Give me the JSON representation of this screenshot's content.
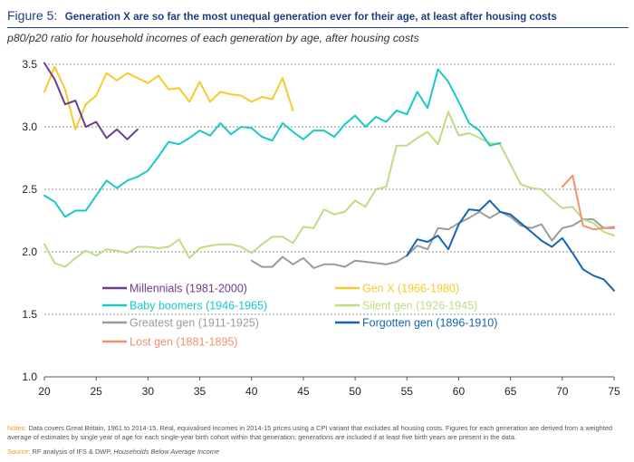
{
  "header": {
    "figure_label": "Figure 5:",
    "title": "Generation X are so far the most unequal generation ever for their age, at least after housing costs",
    "subtitle": "p80/p20 ratio for household incomes of each generation by age, after housing costs"
  },
  "footer": {
    "notes_label": "Notes:",
    "notes_text": "Data covers Great Britain, 1961 to 2014-15. Real, equivalised incomes in 2014-15 prices using a CPI variant that excludes all housing costs. Figures for each generation are derived from a weighted average of estimates by single year of age for each single-year birth cohort within that generation; generations are included if at least five birth years are present in the data.",
    "source_label": "Source:",
    "source_text": "RF analysis of IFS & DWP,",
    "source_title": "Households Below Average Income"
  },
  "chart_data": {
    "type": "line",
    "title": "",
    "xlabel": "",
    "ylabel": "",
    "xlim": [
      20,
      75
    ],
    "ylim": [
      1.0,
      3.5
    ],
    "x_ticks": [
      20,
      25,
      30,
      35,
      40,
      45,
      50,
      55,
      60,
      65,
      70,
      75
    ],
    "y_ticks": [
      1.0,
      1.5,
      2.0,
      2.5,
      3.0,
      3.5
    ],
    "y_tick_labels": [
      "1.0",
      "1.5",
      "2.0",
      "2.5",
      "3.0",
      "3.5"
    ],
    "grid": "horizontal dashed",
    "legend": "inside, lower-left, two columns",
    "series": [
      {
        "name": "Millennials (1981-2000)",
        "color": "#6a3d8e",
        "x": [
          20,
          21,
          22,
          23,
          24,
          25,
          26,
          27,
          28,
          29
        ],
        "y": [
          3.51,
          3.38,
          3.18,
          3.21,
          3.0,
          3.04,
          2.91,
          2.98,
          2.9,
          2.98
        ]
      },
      {
        "name": "Gen X (1966-1980)",
        "color": "#f5cc2c",
        "x": [
          20,
          21,
          22,
          23,
          24,
          25,
          26,
          27,
          28,
          29,
          30,
          31,
          32,
          33,
          34,
          35,
          36,
          37,
          38,
          39,
          40,
          41,
          42,
          43,
          44
        ],
        "y": [
          3.28,
          3.48,
          3.3,
          2.98,
          3.18,
          3.25,
          3.43,
          3.37,
          3.43,
          3.39,
          3.35,
          3.41,
          3.3,
          3.31,
          3.2,
          3.36,
          3.2,
          3.28,
          3.26,
          3.25,
          3.2,
          3.24,
          3.22,
          3.39,
          3.13
        ]
      },
      {
        "name": "Baby boomers (1946-1965)",
        "color": "#1ac8c8",
        "x": [
          20,
          21,
          22,
          23,
          24,
          25,
          26,
          27,
          28,
          29,
          30,
          31,
          32,
          33,
          34,
          35,
          36,
          37,
          38,
          39,
          40,
          41,
          42,
          43,
          44,
          45,
          46,
          47,
          48,
          49,
          50,
          51,
          52,
          53,
          54,
          55,
          56,
          57,
          58,
          59,
          60,
          61,
          62,
          63,
          64
        ],
        "y": [
          2.45,
          2.4,
          2.28,
          2.33,
          2.33,
          2.45,
          2.57,
          2.51,
          2.57,
          2.6,
          2.65,
          2.76,
          2.88,
          2.86,
          2.91,
          2.97,
          2.93,
          3.03,
          2.94,
          3.0,
          2.99,
          2.92,
          2.89,
          3.03,
          2.96,
          2.9,
          2.97,
          2.97,
          2.92,
          3.02,
          3.09,
          3.0,
          3.08,
          3.04,
          3.13,
          3.1,
          3.28,
          3.15,
          3.46,
          3.36,
          3.2,
          3.03,
          2.97,
          2.85,
          2.87
        ]
      },
      {
        "name": "Silent gen (1926-1945)",
        "color": "#bcdd83",
        "x": [
          20,
          21,
          22,
          23,
          24,
          25,
          26,
          27,
          28,
          29,
          30,
          31,
          32,
          33,
          34,
          35,
          36,
          37,
          38,
          39,
          40,
          41,
          42,
          43,
          44,
          45,
          46,
          47,
          48,
          49,
          50,
          51,
          52,
          53,
          54,
          55,
          56,
          57,
          58,
          59,
          60,
          61,
          62,
          63,
          64,
          65,
          66,
          67,
          68,
          69,
          70,
          71,
          72,
          73,
          74,
          75
        ],
        "y": [
          2.06,
          1.91,
          1.88,
          1.95,
          2.01,
          1.97,
          2.02,
          2.01,
          1.99,
          2.04,
          2.04,
          2.03,
          2.04,
          2.1,
          1.95,
          2.03,
          2.05,
          2.06,
          2.06,
          2.04,
          1.99,
          2.06,
          2.12,
          2.12,
          2.07,
          2.2,
          2.19,
          2.34,
          2.3,
          2.32,
          2.41,
          2.36,
          2.5,
          2.52,
          2.85,
          2.85,
          2.91,
          2.96,
          2.86,
          3.12,
          2.93,
          2.95,
          2.91,
          2.87,
          2.86,
          2.7,
          2.54,
          2.51,
          2.5,
          2.42,
          2.35,
          2.36,
          2.26,
          2.23,
          2.16,
          2.13
        ]
      },
      {
        "name": "Greatest gen (1911-1925)",
        "color": "#9b9b9b",
        "x": [
          40,
          41,
          42,
          43,
          44,
          45,
          46,
          47,
          48,
          49,
          50,
          51,
          52,
          53,
          54,
          55,
          56,
          57,
          58,
          59,
          60,
          61,
          62,
          63,
          64,
          65,
          66,
          67,
          68,
          69,
          70,
          71,
          72,
          73,
          74,
          75
        ],
        "y": [
          1.93,
          1.88,
          1.88,
          1.96,
          1.9,
          1.95,
          1.87,
          1.9,
          1.9,
          1.88,
          1.93,
          1.92,
          1.91,
          1.9,
          1.92,
          1.97,
          2.05,
          2.02,
          2.19,
          2.18,
          2.23,
          2.27,
          2.32,
          2.27,
          2.32,
          2.28,
          2.21,
          2.19,
          2.22,
          2.09,
          2.19,
          2.21,
          2.26,
          2.26,
          2.19,
          2.19
        ]
      },
      {
        "name": "Forgotten gen (1896-1910)",
        "color": "#1565b0",
        "x": [
          55,
          56,
          57,
          58,
          59,
          60,
          61,
          62,
          63,
          64,
          65,
          66,
          67,
          68,
          69,
          70,
          71,
          72,
          73,
          74,
          75
        ],
        "y": [
          1.97,
          2.1,
          2.08,
          2.13,
          2.02,
          2.22,
          2.34,
          2.33,
          2.41,
          2.32,
          2.3,
          2.23,
          2.16,
          2.09,
          2.04,
          2.11,
          1.99,
          1.86,
          1.81,
          1.78,
          1.69
        ]
      },
      {
        "name": "Lost gen (1881-1895)",
        "color": "#f0926e",
        "x": [
          70,
          71,
          72,
          73,
          74,
          75
        ],
        "y": [
          2.52,
          2.61,
          2.21,
          2.18,
          2.19,
          2.2
        ]
      }
    ]
  }
}
